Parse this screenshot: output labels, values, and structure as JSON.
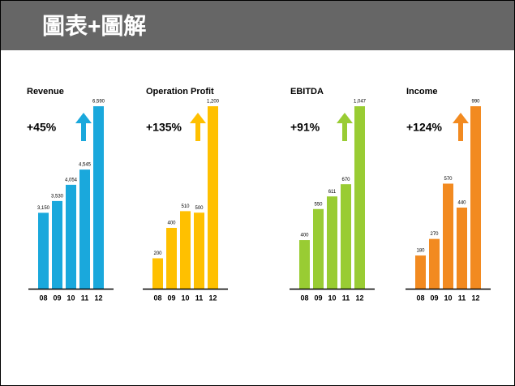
{
  "header": {
    "title": "圖表+圖解"
  },
  "chart_data": [
    {
      "type": "bar",
      "title": "Revenue",
      "annotation": "+45%",
      "categories": [
        "08",
        "09",
        "10",
        "11",
        "12"
      ],
      "values": [
        3150,
        3530,
        4054,
        4545,
        6590
      ],
      "value_labels": [
        "3,150",
        "3,530",
        "4,054",
        "4,545",
        "6,590"
      ],
      "color": "#1aa8dc",
      "ylim": [
        700,
        6590
      ]
    },
    {
      "type": "bar",
      "title": "Operation Profit",
      "annotation": "+135%",
      "categories": [
        "08",
        "09",
        "10",
        "11",
        "12"
      ],
      "values": [
        200,
        400,
        510,
        500,
        1200
      ],
      "value_labels": [
        "200",
        "400",
        "510",
        "500",
        "1,200"
      ],
      "color": "#ffc000",
      "ylim": [
        0,
        1200
      ]
    },
    {
      "type": "bar",
      "title": "EBITDA",
      "annotation": "+91%",
      "categories": [
        "08",
        "09",
        "10",
        "11",
        "12"
      ],
      "values": [
        400,
        550,
        611,
        670,
        1047
      ],
      "value_labels": [
        "400",
        "550",
        "611",
        "670",
        "1,047"
      ],
      "color": "#99cc33",
      "ylim": [
        165,
        1047
      ]
    },
    {
      "type": "bar",
      "title": "Income",
      "annotation": "+124%",
      "categories": [
        "08",
        "09",
        "10",
        "11",
        "12"
      ],
      "values": [
        180,
        270,
        570,
        440,
        990
      ],
      "color": "#f28a20",
      "ylim": [
        0,
        990
      ]
    }
  ]
}
